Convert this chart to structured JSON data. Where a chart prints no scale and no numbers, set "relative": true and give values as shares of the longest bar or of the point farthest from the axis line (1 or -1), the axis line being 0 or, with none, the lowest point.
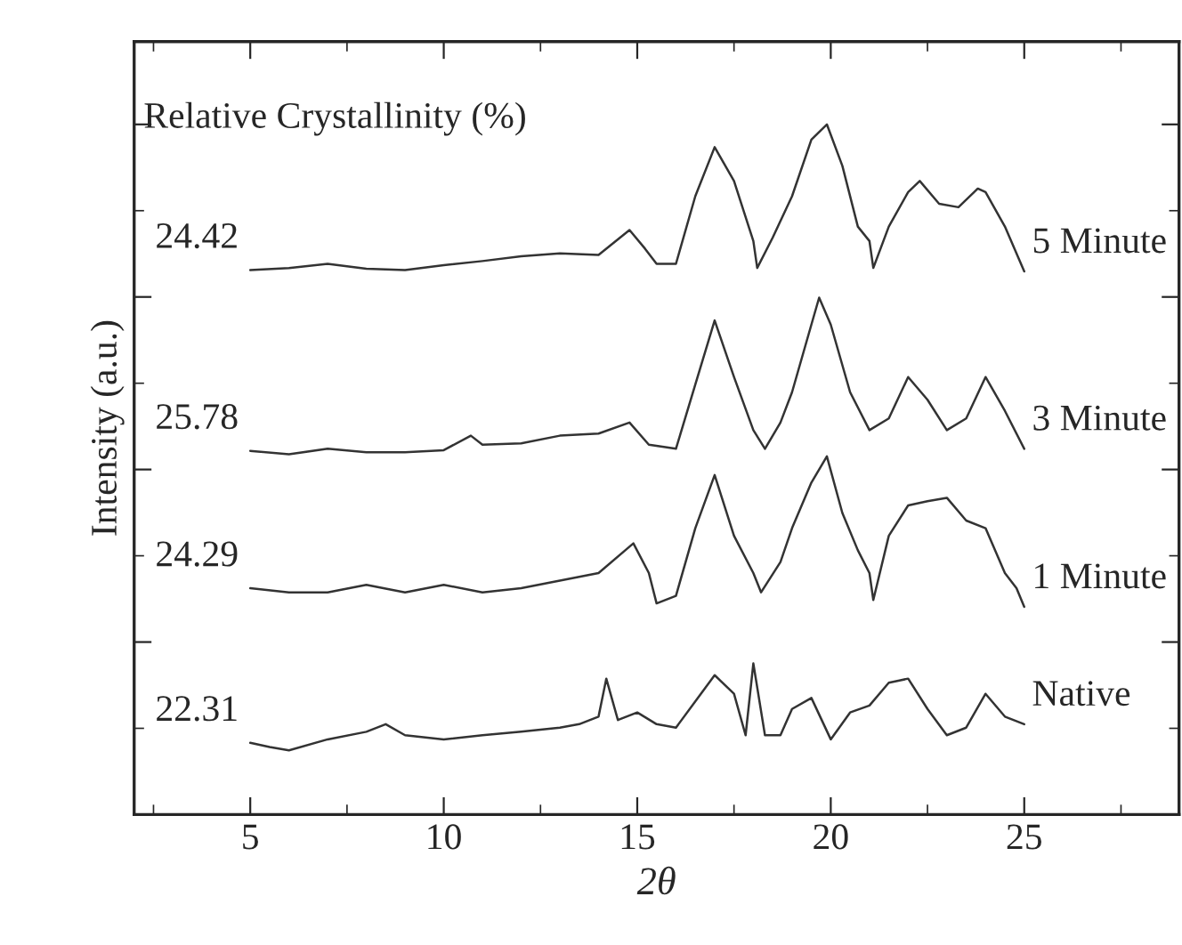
{
  "chart_data": {
    "type": "line",
    "relative": true,
    "xlabel": "2θ",
    "ylabel": "Intensity (a.u.)",
    "xlim": [
      2,
      29
    ],
    "xticks": [
      5,
      10,
      15,
      20,
      25
    ],
    "grid": false,
    "legend": "right",
    "marker": "none",
    "line_style": "solid",
    "annotations": [
      "Relative Crystallinity (%)",
      "24.42",
      "25.78",
      "24.29",
      "22.31"
    ],
    "series": [
      {
        "name": "5 Minute",
        "color": "#333333",
        "x": [
          5,
          6,
          7,
          8,
          9,
          10,
          11,
          12,
          13,
          14,
          14.8,
          15.2,
          15.5,
          16,
          16.5,
          17,
          17.5,
          18,
          18.1,
          18.5,
          19,
          19.5,
          19.9,
          20.3,
          20.7,
          21,
          21.1,
          21.5,
          22,
          22.3,
          22.8,
          23.3,
          23.8,
          24,
          24.5,
          25
        ],
        "values": [
          0.789,
          0.792,
          0.798,
          0.791,
          0.789,
          0.796,
          0.802,
          0.809,
          0.813,
          0.811,
          0.847,
          0.82,
          0.798,
          0.798,
          0.896,
          0.967,
          0.918,
          0.831,
          0.792,
          0.836,
          0.896,
          0.978,
          1.0,
          0.94,
          0.852,
          0.831,
          0.792,
          0.852,
          0.902,
          0.918,
          0.885,
          0.88,
          0.907,
          0.902,
          0.852,
          0.787
        ]
      },
      {
        "name": "3 Minute",
        "color": "#333333",
        "x": [
          5,
          6,
          7,
          8,
          9,
          10,
          10.7,
          11,
          12,
          13,
          14,
          14.8,
          15.3,
          16,
          16.5,
          17,
          17.5,
          18,
          18.3,
          18.7,
          19,
          19.5,
          19.7,
          20,
          20.5,
          21,
          21.5,
          22,
          22.5,
          23,
          23.5,
          24,
          24.5,
          25
        ],
        "values": [
          0.527,
          0.522,
          0.53,
          0.525,
          0.525,
          0.528,
          0.549,
          0.536,
          0.538,
          0.549,
          0.552,
          0.568,
          0.536,
          0.53,
          0.623,
          0.716,
          0.634,
          0.557,
          0.53,
          0.568,
          0.612,
          0.71,
          0.749,
          0.71,
          0.612,
          0.557,
          0.574,
          0.634,
          0.601,
          0.557,
          0.574,
          0.634,
          0.585,
          0.53
        ]
      },
      {
        "name": "1 Minute",
        "color": "#333333",
        "x": [
          5,
          6,
          7,
          8,
          9,
          10,
          11,
          12,
          13,
          14,
          14.9,
          15.3,
          15.5,
          16,
          16.5,
          17,
          17.5,
          18,
          18.2,
          18.7,
          19,
          19.5,
          19.9,
          20.3,
          20.7,
          21,
          21.1,
          21.5,
          22,
          22.5,
          23,
          23.5,
          24,
          24.5,
          24.8,
          25
        ],
        "values": [
          0.328,
          0.322,
          0.322,
          0.333,
          0.322,
          0.333,
          0.322,
          0.328,
          0.339,
          0.35,
          0.393,
          0.35,
          0.306,
          0.317,
          0.415,
          0.492,
          0.404,
          0.35,
          0.322,
          0.366,
          0.415,
          0.481,
          0.519,
          0.437,
          0.383,
          0.35,
          0.311,
          0.404,
          0.448,
          0.454,
          0.459,
          0.426,
          0.415,
          0.35,
          0.328,
          0.301
        ]
      },
      {
        "name": "Native",
        "color": "#333333",
        "x": [
          5,
          5.5,
          6,
          7,
          8,
          8.5,
          9,
          10,
          11,
          12,
          13,
          13.5,
          14,
          14.2,
          14.5,
          15,
          15.5,
          16,
          16.5,
          17,
          17.5,
          17.8,
          18,
          18.3,
          18.7,
          19,
          19.5,
          20,
          20.5,
          21,
          21.5,
          22,
          22.5,
          23,
          23.5,
          24,
          24.5,
          25
        ],
        "values": [
          0.104,
          0.098,
          0.093,
          0.109,
          0.12,
          0.131,
          0.115,
          0.109,
          0.115,
          0.12,
          0.126,
          0.131,
          0.142,
          0.197,
          0.137,
          0.148,
          0.131,
          0.126,
          0.164,
          0.202,
          0.175,
          0.115,
          0.219,
          0.115,
          0.115,
          0.153,
          0.169,
          0.109,
          0.148,
          0.158,
          0.191,
          0.197,
          0.153,
          0.115,
          0.126,
          0.175,
          0.142,
          0.131
        ]
      }
    ]
  }
}
